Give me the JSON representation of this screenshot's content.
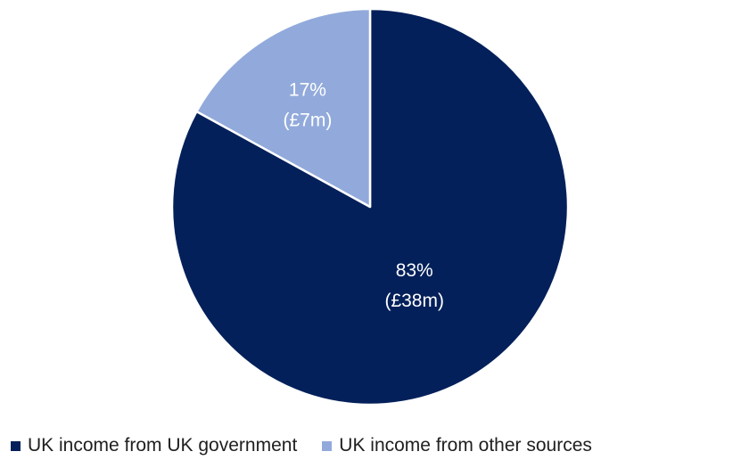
{
  "chart_data": {
    "type": "pie",
    "title": "",
    "slices": [
      {
        "name": "UK income from UK government",
        "value": 83,
        "percent_label": "83%",
        "amount_label": "(£38m)",
        "color": "#03205a",
        "label_color": "#ffffff"
      },
      {
        "name": "UK income from other sources",
        "value": 17,
        "percent_label": "17%",
        "amount_label": "(£7m)",
        "color": "#92aadb",
        "label_color": "#ffffff"
      }
    ],
    "start_angle": "12 o'clock",
    "direction": "clockwise",
    "legend_position": "bottom"
  }
}
